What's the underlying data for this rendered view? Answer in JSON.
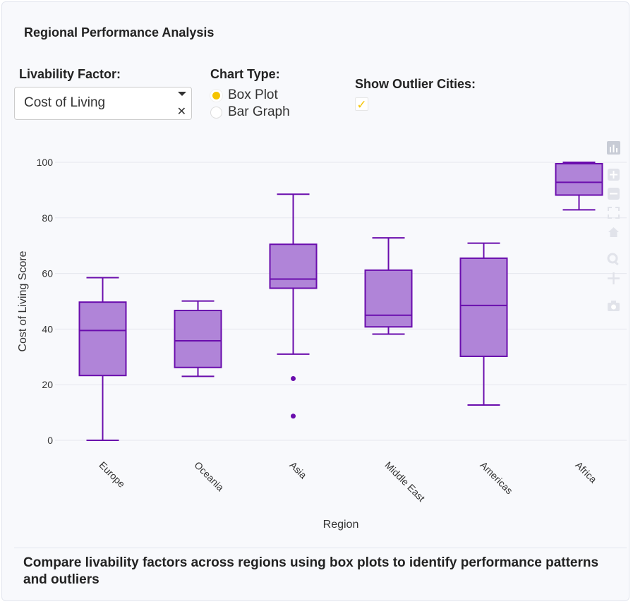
{
  "panel": {
    "title": "Regional Performance Analysis",
    "footer_text": "Compare livability factors across regions using box plots to identify performance patterns and outliers"
  },
  "controls": {
    "factor_label": "Livability Factor:",
    "factor_value": "Cost of Living",
    "chart_type_label": "Chart Type:",
    "chart_type_options": [
      {
        "label": "Box Plot",
        "selected": true
      },
      {
        "label": "Bar Graph",
        "selected": false
      }
    ],
    "outlier_label": "Show Outlier Cities:",
    "outlier_checked": true,
    "check_glyph": "✓"
  },
  "toolbar": [
    "download-icon",
    "zoom-in-icon",
    "zoom-out-icon",
    "autoscale-icon",
    "home-icon",
    "zoom-icon",
    "pan-icon",
    "camera-icon"
  ],
  "colors": {
    "box_fill": "#b084d8",
    "box_line": "#6a0dad",
    "accent": "#f5c400"
  },
  "chart_data": {
    "type": "box",
    "xlabel": "Region",
    "ylabel": "Cost of Living Score",
    "ylim": [
      -5,
      105
    ],
    "yticks": [
      0,
      20,
      40,
      60,
      80,
      100
    ],
    "grid": true,
    "categories": [
      "Europe",
      "Oceania",
      "Asia",
      "Middle East",
      "Americas",
      "Africa"
    ],
    "boxes": [
      {
        "name": "Europe",
        "min": 0,
        "q1": 23.3,
        "median": 39.5,
        "q3": 49.7,
        "max": 58.5,
        "outliers": []
      },
      {
        "name": "Oceania",
        "min": 23,
        "q1": 26.2,
        "median": 35.8,
        "q3": 46.7,
        "max": 50.1,
        "outliers": []
      },
      {
        "name": "Asia",
        "min": 31,
        "q1": 54.7,
        "median": 58,
        "q3": 70.5,
        "max": 88.5,
        "outliers": [
          22.2,
          8.7
        ]
      },
      {
        "name": "Middle East",
        "min": 38.2,
        "q1": 40.8,
        "median": 45,
        "q3": 61.2,
        "max": 72.8,
        "outliers": []
      },
      {
        "name": "Americas",
        "min": 12.7,
        "q1": 30.2,
        "median": 48.5,
        "q3": 65.5,
        "max": 70.9,
        "outliers": []
      },
      {
        "name": "Africa",
        "min": 82.9,
        "q1": 88.2,
        "median": 92.8,
        "q3": 99.5,
        "max": 100,
        "outliers": []
      }
    ]
  }
}
